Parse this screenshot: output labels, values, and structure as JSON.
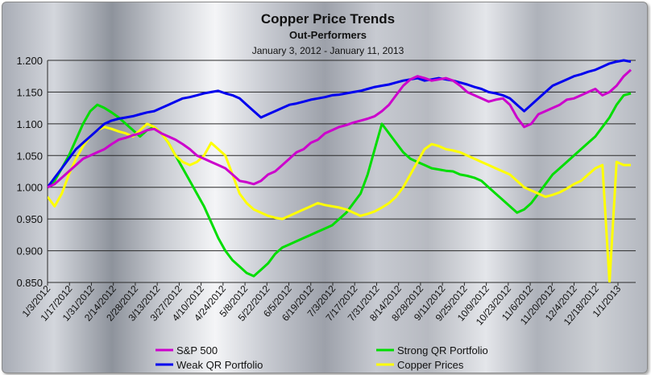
{
  "chart_data": {
    "type": "line",
    "title": "Copper Price Trends",
    "subtitle": "Out-Performers",
    "date_range": "January 3, 2012 - January 11, 2013",
    "ylim": [
      0.85,
      1.2
    ],
    "yticks": [
      "0.850",
      "0.900",
      "0.950",
      "1.000",
      "1.050",
      "1.100",
      "1.150",
      "1.200"
    ],
    "xticks": [
      "1/3/2012",
      "1/17/2012",
      "1/31/2012",
      "2/14/2012",
      "2/28/2012",
      "3/13/2012",
      "3/27/2012",
      "4/10/2012",
      "4/24/2012",
      "5/8/2012",
      "5/22/2012",
      "6/5/2012",
      "6/19/2012",
      "7/3/2012",
      "7/17/2012",
      "7/31/2012",
      "8/14/2012",
      "8/28/2012",
      "9/11/2012",
      "9/25/2012",
      "10/9/2012",
      "10/23/2012",
      "11/6/2012",
      "11/20/2012",
      "12/4/2012",
      "12/18/2012",
      "1/1/2013"
    ],
    "grid": true,
    "legend_position": "bottom",
    "series": [
      {
        "name": "S&P 500",
        "color": "#cc00cc",
        "values": [
          1.0,
          1.005,
          1.015,
          1.025,
          1.035,
          1.045,
          1.05,
          1.055,
          1.06,
          1.068,
          1.075,
          1.078,
          1.082,
          1.085,
          1.09,
          1.092,
          1.085,
          1.08,
          1.075,
          1.068,
          1.06,
          1.05,
          1.045,
          1.04,
          1.035,
          1.03,
          1.02,
          1.01,
          1.008,
          1.005,
          1.01,
          1.02,
          1.025,
          1.035,
          1.045,
          1.055,
          1.06,
          1.07,
          1.075,
          1.085,
          1.09,
          1.095,
          1.098,
          1.102,
          1.105,
          1.108,
          1.112,
          1.12,
          1.13,
          1.145,
          1.16,
          1.17,
          1.175,
          1.172,
          1.168,
          1.17,
          1.172,
          1.168,
          1.16,
          1.15,
          1.145,
          1.14,
          1.135,
          1.138,
          1.14,
          1.13,
          1.11,
          1.095,
          1.1,
          1.115,
          1.12,
          1.125,
          1.13,
          1.138,
          1.14,
          1.145,
          1.15,
          1.155,
          1.145,
          1.15,
          1.16,
          1.175,
          1.185
        ]
      },
      {
        "name": "Weak QR Portfolio",
        "color": "#0000ee",
        "values": [
          1.0,
          1.015,
          1.03,
          1.045,
          1.06,
          1.07,
          1.08,
          1.09,
          1.1,
          1.105,
          1.108,
          1.11,
          1.112,
          1.115,
          1.118,
          1.12,
          1.125,
          1.13,
          1.135,
          1.14,
          1.142,
          1.145,
          1.148,
          1.15,
          1.152,
          1.148,
          1.145,
          1.14,
          1.13,
          1.12,
          1.11,
          1.115,
          1.12,
          1.125,
          1.13,
          1.132,
          1.135,
          1.138,
          1.14,
          1.142,
          1.145,
          1.146,
          1.148,
          1.15,
          1.152,
          1.155,
          1.158,
          1.16,
          1.162,
          1.165,
          1.168,
          1.17,
          1.172,
          1.168,
          1.17,
          1.172,
          1.17,
          1.168,
          1.165,
          1.162,
          1.158,
          1.155,
          1.15,
          1.148,
          1.145,
          1.14,
          1.13,
          1.12,
          1.13,
          1.14,
          1.15,
          1.16,
          1.165,
          1.17,
          1.175,
          1.178,
          1.182,
          1.185,
          1.19,
          1.195,
          1.198,
          1.2,
          1.198
        ]
      },
      {
        "name": "Strong QR Portfolio",
        "color": "#00dd00",
        "values": [
          1.0,
          1.01,
          1.03,
          1.05,
          1.075,
          1.1,
          1.12,
          1.13,
          1.125,
          1.118,
          1.11,
          1.1,
          1.09,
          1.08,
          1.09,
          1.095,
          1.085,
          1.07,
          1.05,
          1.03,
          1.01,
          0.99,
          0.97,
          0.945,
          0.92,
          0.9,
          0.885,
          0.875,
          0.865,
          0.86,
          0.87,
          0.88,
          0.895,
          0.905,
          0.91,
          0.915,
          0.92,
          0.925,
          0.93,
          0.935,
          0.94,
          0.95,
          0.96,
          0.975,
          0.99,
          1.02,
          1.06,
          1.1,
          1.085,
          1.07,
          1.055,
          1.045,
          1.04,
          1.035,
          1.03,
          1.028,
          1.026,
          1.025,
          1.02,
          1.018,
          1.015,
          1.01,
          1.0,
          0.99,
          0.98,
          0.97,
          0.96,
          0.965,
          0.975,
          0.99,
          1.005,
          1.02,
          1.03,
          1.04,
          1.05,
          1.06,
          1.07,
          1.08,
          1.095,
          1.11,
          1.13,
          1.145,
          1.148
        ]
      },
      {
        "name": "Copper Prices",
        "color": "#ffff00",
        "values": [
          0.985,
          0.97,
          0.99,
          1.02,
          1.045,
          1.065,
          1.08,
          1.09,
          1.095,
          1.092,
          1.088,
          1.085,
          1.08,
          1.09,
          1.1,
          1.095,
          1.085,
          1.07,
          1.05,
          1.04,
          1.035,
          1.04,
          1.05,
          1.07,
          1.06,
          1.05,
          1.02,
          0.99,
          0.975,
          0.965,
          0.96,
          0.955,
          0.952,
          0.95,
          0.955,
          0.96,
          0.965,
          0.97,
          0.975,
          0.972,
          0.97,
          0.968,
          0.965,
          0.96,
          0.955,
          0.958,
          0.962,
          0.968,
          0.975,
          0.985,
          1.0,
          1.02,
          1.04,
          1.06,
          1.068,
          1.065,
          1.06,
          1.058,
          1.055,
          1.05,
          1.045,
          1.04,
          1.035,
          1.03,
          1.025,
          1.02,
          1.01,
          1.0,
          0.995,
          0.99,
          0.985,
          0.988,
          0.992,
          0.998,
          1.005,
          1.01,
          1.02,
          1.03,
          1.035,
          0.85,
          1.04,
          1.035,
          1.035
        ]
      }
    ]
  }
}
